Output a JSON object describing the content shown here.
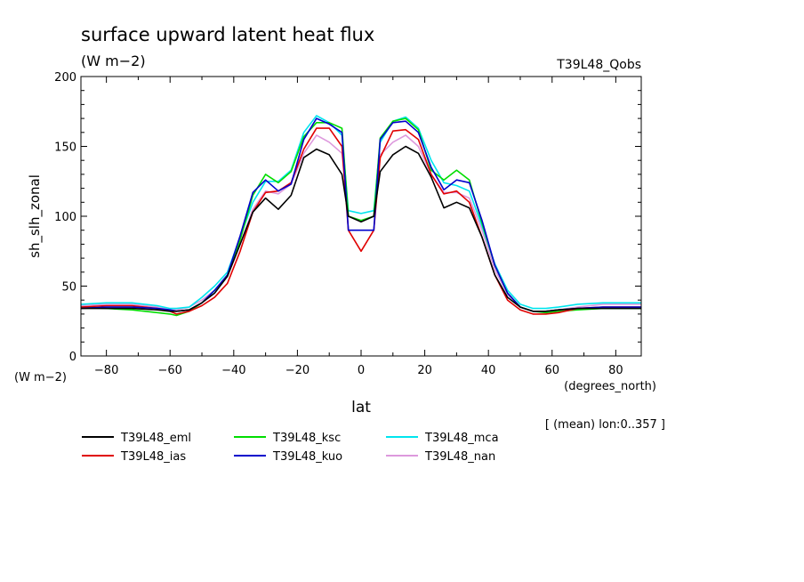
{
  "chart_data": {
    "type": "line",
    "title": "surface upward latent heat flux",
    "subtitle": "(W m−2)",
    "experiment_label": "T39L48_Qobs",
    "xlabel": "lat",
    "x_units": "(degrees_north)",
    "ylabel": "sh_slh_zonal",
    "y_units": "(W m−2)",
    "note": "[ (mean) lon:0..357 ]",
    "xlim": [
      -88,
      88
    ],
    "ylim": [
      0,
      200
    ],
    "x_ticks": [
      -80,
      -60,
      -40,
      -20,
      0,
      20,
      40,
      60,
      80
    ],
    "x_tick_labels": [
      "−80",
      "−60",
      "−40",
      "−20",
      "0",
      "20",
      "40",
      "60",
      "80"
    ],
    "y_ticks": [
      0,
      50,
      100,
      150,
      200
    ],
    "y_tick_labels": [
      "0",
      "50",
      "100",
      "150",
      "200"
    ],
    "legend_placement": "below",
    "x": [
      -88,
      -80,
      -72,
      -64,
      -60,
      -58,
      -54,
      -50,
      -46,
      -42,
      -38,
      -34,
      -30,
      -26,
      -22,
      -18,
      -14,
      -10,
      -6,
      -4,
      0,
      4,
      6,
      10,
      14,
      18,
      22,
      26,
      30,
      34,
      38,
      42,
      46,
      50,
      54,
      58,
      62,
      68,
      76,
      88
    ],
    "series": [
      {
        "name": "T39L48_eml",
        "color": "#000000",
        "values": [
          34,
          34,
          34,
          33,
          32,
          32,
          33,
          38,
          45,
          57,
          80,
          103,
          113,
          105,
          115,
          142,
          148,
          144,
          130,
          100,
          96,
          100,
          132,
          144,
          150,
          145,
          128,
          106,
          110,
          106,
          85,
          58,
          42,
          35,
          32,
          32,
          33,
          34,
          34,
          34
        ]
      },
      {
        "name": "T39L48_ias",
        "color": "#e00000",
        "values": [
          35,
          36,
          36,
          34,
          32,
          30,
          32,
          36,
          42,
          52,
          75,
          103,
          117,
          118,
          124,
          148,
          163,
          163,
          150,
          90,
          75,
          90,
          142,
          161,
          162,
          155,
          130,
          116,
          118,
          110,
          85,
          58,
          40,
          33,
          30,
          30,
          31,
          34,
          35,
          35
        ]
      },
      {
        "name": "T39L48_ksc",
        "color": "#00dd00",
        "values": [
          35,
          34,
          33,
          31,
          30,
          29,
          32,
          38,
          47,
          57,
          83,
          115,
          130,
          124,
          132,
          157,
          167,
          167,
          163,
          100,
          97,
          100,
          156,
          168,
          170,
          162,
          133,
          126,
          133,
          126,
          95,
          65,
          45,
          35,
          32,
          31,
          32,
          33,
          34,
          34
        ]
      },
      {
        "name": "T39L48_kuo",
        "color": "#0000cc",
        "values": [
          34,
          35,
          35,
          34,
          33,
          32,
          33,
          38,
          47,
          58,
          86,
          117,
          126,
          118,
          123,
          155,
          170,
          166,
          160,
          90,
          90,
          90,
          155,
          167,
          168,
          160,
          135,
          119,
          126,
          124,
          97,
          65,
          45,
          35,
          32,
          32,
          33,
          34,
          35,
          35
        ]
      },
      {
        "name": "T39L48_mca",
        "color": "#00e5ee",
        "values": [
          37,
          38,
          38,
          36,
          34,
          34,
          35,
          42,
          50,
          60,
          85,
          110,
          125,
          125,
          133,
          160,
          172,
          167,
          158,
          104,
          102,
          104,
          153,
          168,
          171,
          163,
          140,
          124,
          122,
          118,
          93,
          66,
          47,
          37,
          34,
          34,
          35,
          37,
          38,
          38
        ]
      },
      {
        "name": "T39L48_nan",
        "color": "#dd99dd",
        "values": [
          36,
          37,
          37,
          35,
          33,
          33,
          35,
          40,
          47,
          57,
          80,
          105,
          118,
          116,
          123,
          145,
          158,
          153,
          145,
          100,
          97,
          100,
          144,
          153,
          158,
          150,
          130,
          117,
          117,
          113,
          90,
          62,
          44,
          35,
          32,
          32,
          33,
          35,
          37,
          37
        ]
      }
    ]
  }
}
